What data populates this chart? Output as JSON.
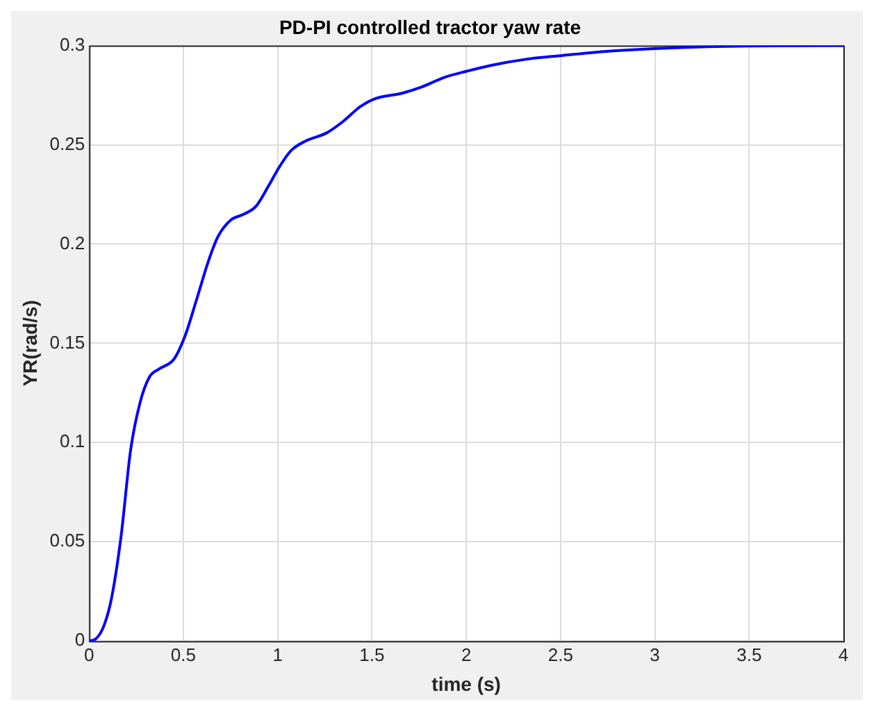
{
  "chart_data": {
    "type": "line",
    "title": "PD-PI controlled tractor yaw rate",
    "xlabel": "time (s)",
    "ylabel": "YR(rad/s)",
    "x": [
      0,
      0.035,
      0.08,
      0.12,
      0.17,
      0.22,
      0.27,
      0.32,
      0.37,
      0.45,
      0.51,
      0.57,
      0.635,
      0.685,
      0.75,
      0.82,
      0.885,
      0.95,
      1.01,
      1.07,
      1.15,
      1.26,
      1.35,
      1.435,
      1.51,
      1.66,
      1.76,
      1.885,
      2.0,
      2.13,
      2.31,
      2.51,
      2.73,
      3.0,
      3.5,
      4.0
    ],
    "series": [
      {
        "color": "#0000ff",
        "values": [
          0,
          0.001,
          0.008,
          0.022,
          0.053,
          0.096,
          0.12,
          0.133,
          0.137,
          0.142,
          0.154,
          0.172,
          0.192,
          0.204,
          0.212,
          0.215,
          0.219,
          0.229,
          0.239,
          0.247,
          0.252,
          0.256,
          0.262,
          0.269,
          0.273,
          0.276,
          0.279,
          0.284,
          0.287,
          0.29,
          0.293,
          0.295,
          0.297,
          0.2985,
          0.2998,
          0.3
        ]
      }
    ],
    "xlim": [
      0,
      4
    ],
    "xticks": [
      0,
      0.5,
      1,
      1.5,
      2,
      2.5,
      3,
      3.5,
      4
    ],
    "ylim": [
      0,
      0.3
    ],
    "yticks": [
      0,
      0.05,
      0.1,
      0.15,
      0.2,
      0.25,
      0.3
    ],
    "grid": true,
    "legend": false,
    "marker": "none",
    "line_style": "solid"
  }
}
